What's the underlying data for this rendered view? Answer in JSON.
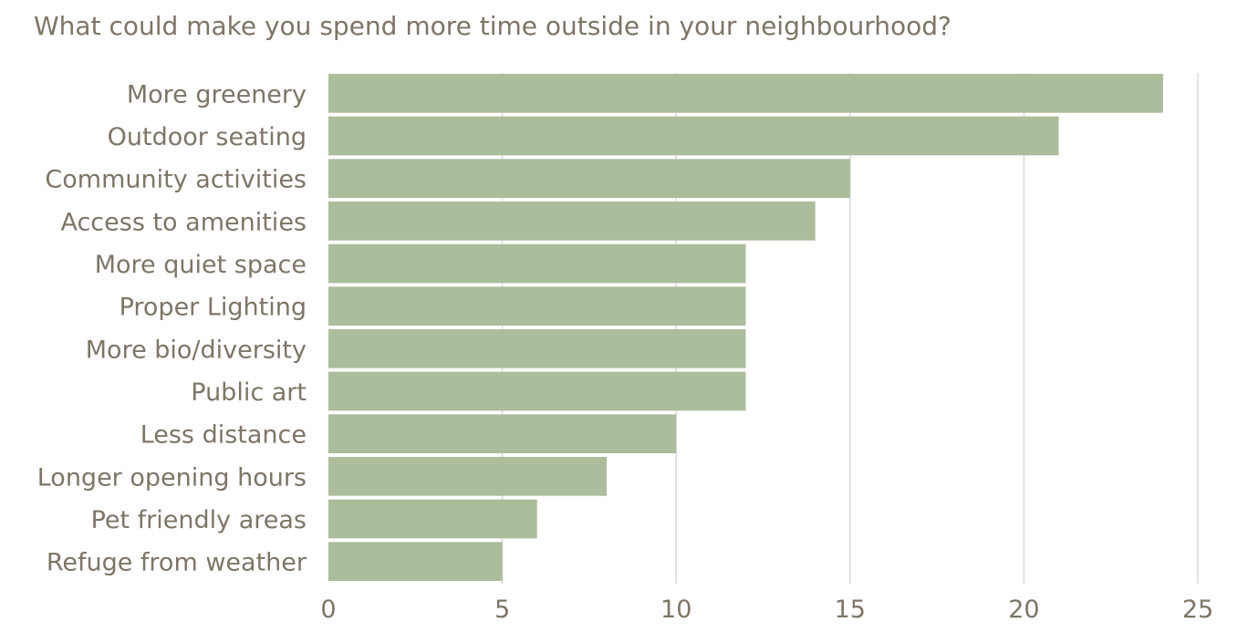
{
  "chart_data": {
    "type": "bar",
    "orientation": "horizontal",
    "title": "What could make you spend more time outside in your neighbourhood?",
    "categories": [
      "More greenery",
      "Outdoor seating",
      "Community activities",
      "Access to amenities",
      "More quiet space",
      "Proper Lighting",
      "More bio/diversity",
      "Public art",
      "Less distance",
      "Longer opening hours",
      "Pet friendly areas",
      "Refuge from weather"
    ],
    "values": [
      24,
      21,
      15,
      14,
      12,
      12,
      12,
      12,
      10,
      8,
      6,
      5
    ],
    "xlim": [
      0,
      25
    ],
    "xticks": [
      "0",
      "5",
      "10",
      "15",
      "20",
      "25"
    ],
    "grid": "vertical",
    "legend": "none",
    "bar_color": "#abbd9a"
  }
}
